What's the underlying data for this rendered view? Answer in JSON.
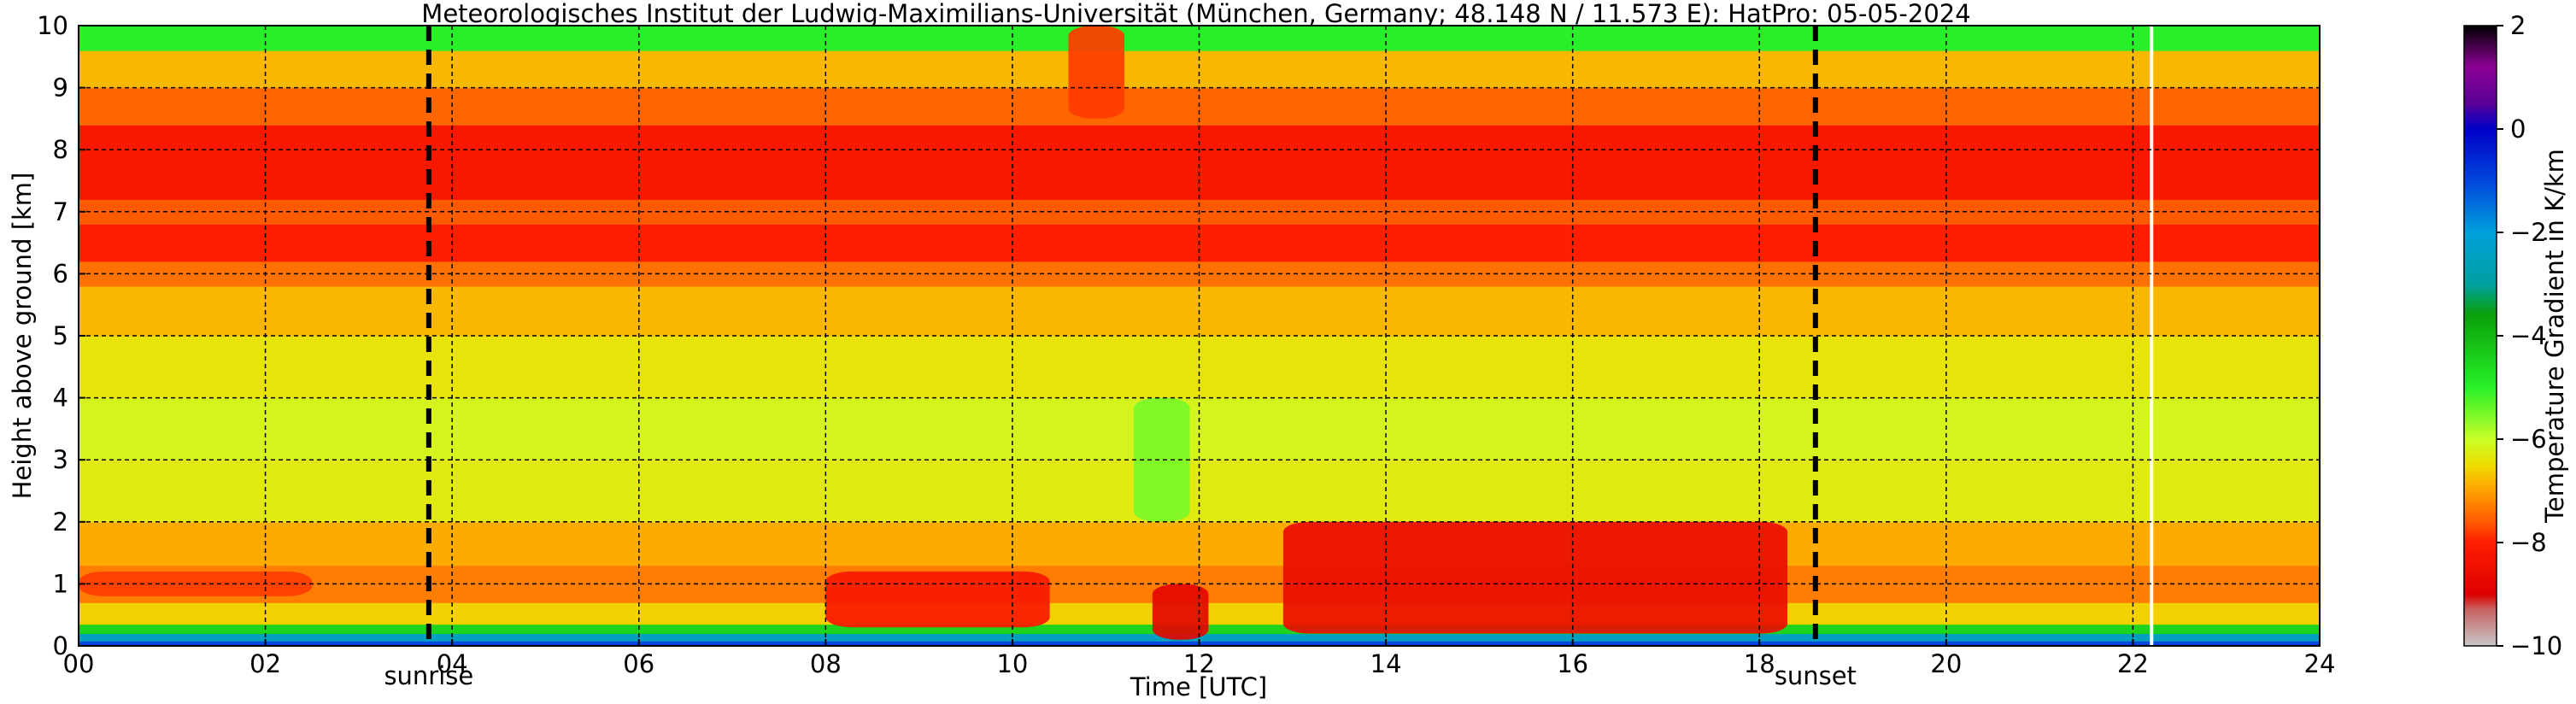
{
  "chart_data": {
    "type": "heatmap",
    "title": "Meteorologisches Institut der Ludwig-Maximilians-Universität (München, Germany; 48.148 N / 11.573 E):    HatPro: 05-05-2024",
    "xlabel": "Time [UTC]",
    "ylabel": "Height above ground [km]",
    "xlim": [
      0,
      24
    ],
    "ylim": [
      0,
      10
    ],
    "x_ticks": [
      "00",
      "02",
      "04",
      "06",
      "08",
      "10",
      "12",
      "14",
      "16",
      "18",
      "20",
      "22",
      "24"
    ],
    "y_ticks": [
      "0",
      "1",
      "2",
      "3",
      "4",
      "5",
      "6",
      "7",
      "8",
      "9",
      "10"
    ],
    "grid": true,
    "markers": [
      {
        "label": "sunrise",
        "x": 3.75
      },
      {
        "label": "sunset",
        "x": 18.6
      }
    ],
    "data_gap": {
      "x": 22.2
    },
    "colorbar": {
      "label": "Temperature Gradient in K/km",
      "range": [
        -10,
        2
      ],
      "ticks": [
        "2",
        "0",
        "−2",
        "−4",
        "−6",
        "−8",
        "−10"
      ],
      "colors": [
        {
          "v": -10,
          "c": "#c8c8c8"
        },
        {
          "v": -9.3,
          "c": "#c86464"
        },
        {
          "v": -9,
          "c": "#dc0000"
        },
        {
          "v": -8,
          "c": "#ff1e00"
        },
        {
          "v": -7.6,
          "c": "#ff5a00"
        },
        {
          "v": -7,
          "c": "#ffa000"
        },
        {
          "v": -6.5,
          "c": "#f0dc00"
        },
        {
          "v": -6,
          "c": "#c8ff28"
        },
        {
          "v": -5,
          "c": "#28f028"
        },
        {
          "v": -3.6,
          "c": "#0aa00a"
        },
        {
          "v": -3,
          "c": "#00a0a0"
        },
        {
          "v": -2,
          "c": "#00a0dc"
        },
        {
          "v": -1,
          "c": "#0046dc"
        },
        {
          "v": 0,
          "c": "#0000c8"
        },
        {
          "v": 0.5,
          "c": "#5a0096"
        },
        {
          "v": 1.2,
          "c": "#8c0096"
        },
        {
          "v": 2,
          "c": "#000000"
        }
      ]
    },
    "field": {
      "layers": [
        {
          "h0": 0,
          "h1": 0.08,
          "value": -1
        },
        {
          "h0": 0.08,
          "h1": 0.2,
          "value": -2.5
        },
        {
          "h0": 0.2,
          "h1": 0.35,
          "value": -4.5
        },
        {
          "h0": 0.35,
          "h1": 0.7,
          "value": -6.6
        },
        {
          "h0": 0.7,
          "h1": 1.3,
          "value": -7.3
        },
        {
          "h0": 1.3,
          "h1": 2.0,
          "value": -6.9
        },
        {
          "h0": 2.0,
          "h1": 3.0,
          "value": -6.3
        },
        {
          "h0": 3.0,
          "h1": 4.0,
          "value": -6.15
        },
        {
          "h0": 4.0,
          "h1": 5.0,
          "value": -6.4
        },
        {
          "h0": 5.0,
          "h1": 5.8,
          "value": -6.8
        },
        {
          "h0": 5.8,
          "h1": 6.2,
          "value": -7.4
        },
        {
          "h0": 6.2,
          "h1": 6.8,
          "value": -8.0
        },
        {
          "h0": 6.8,
          "h1": 7.2,
          "value": -7.6
        },
        {
          "h0": 7.2,
          "h1": 8.4,
          "value": -8.2
        },
        {
          "h0": 8.4,
          "h1": 9.0,
          "value": -7.5
        },
        {
          "h0": 9.0,
          "h1": 9.6,
          "value": -6.8
        },
        {
          "h0": 9.6,
          "h1": 10,
          "value": -5.0
        }
      ],
      "features": [
        {
          "t0": 12.9,
          "t1": 18.3,
          "h0": 0.2,
          "h1": 2.0,
          "value": -8.6
        },
        {
          "t0": 8.0,
          "t1": 10.4,
          "h0": 0.3,
          "h1": 1.2,
          "value": -8.2
        },
        {
          "t0": 0.0,
          "t1": 2.5,
          "h0": 0.8,
          "h1": 1.2,
          "value": -7.8
        },
        {
          "t0": 11.3,
          "t1": 11.9,
          "h0": 2.0,
          "h1": 4.0,
          "value": -5.5
        },
        {
          "t0": 11.5,
          "t1": 12.1,
          "h0": 0.1,
          "h1": 1.0,
          "value": -8.8
        },
        {
          "t0": 10.6,
          "t1": 11.2,
          "h0": 8.5,
          "h1": 10.0,
          "value": -7.8
        }
      ]
    }
  }
}
